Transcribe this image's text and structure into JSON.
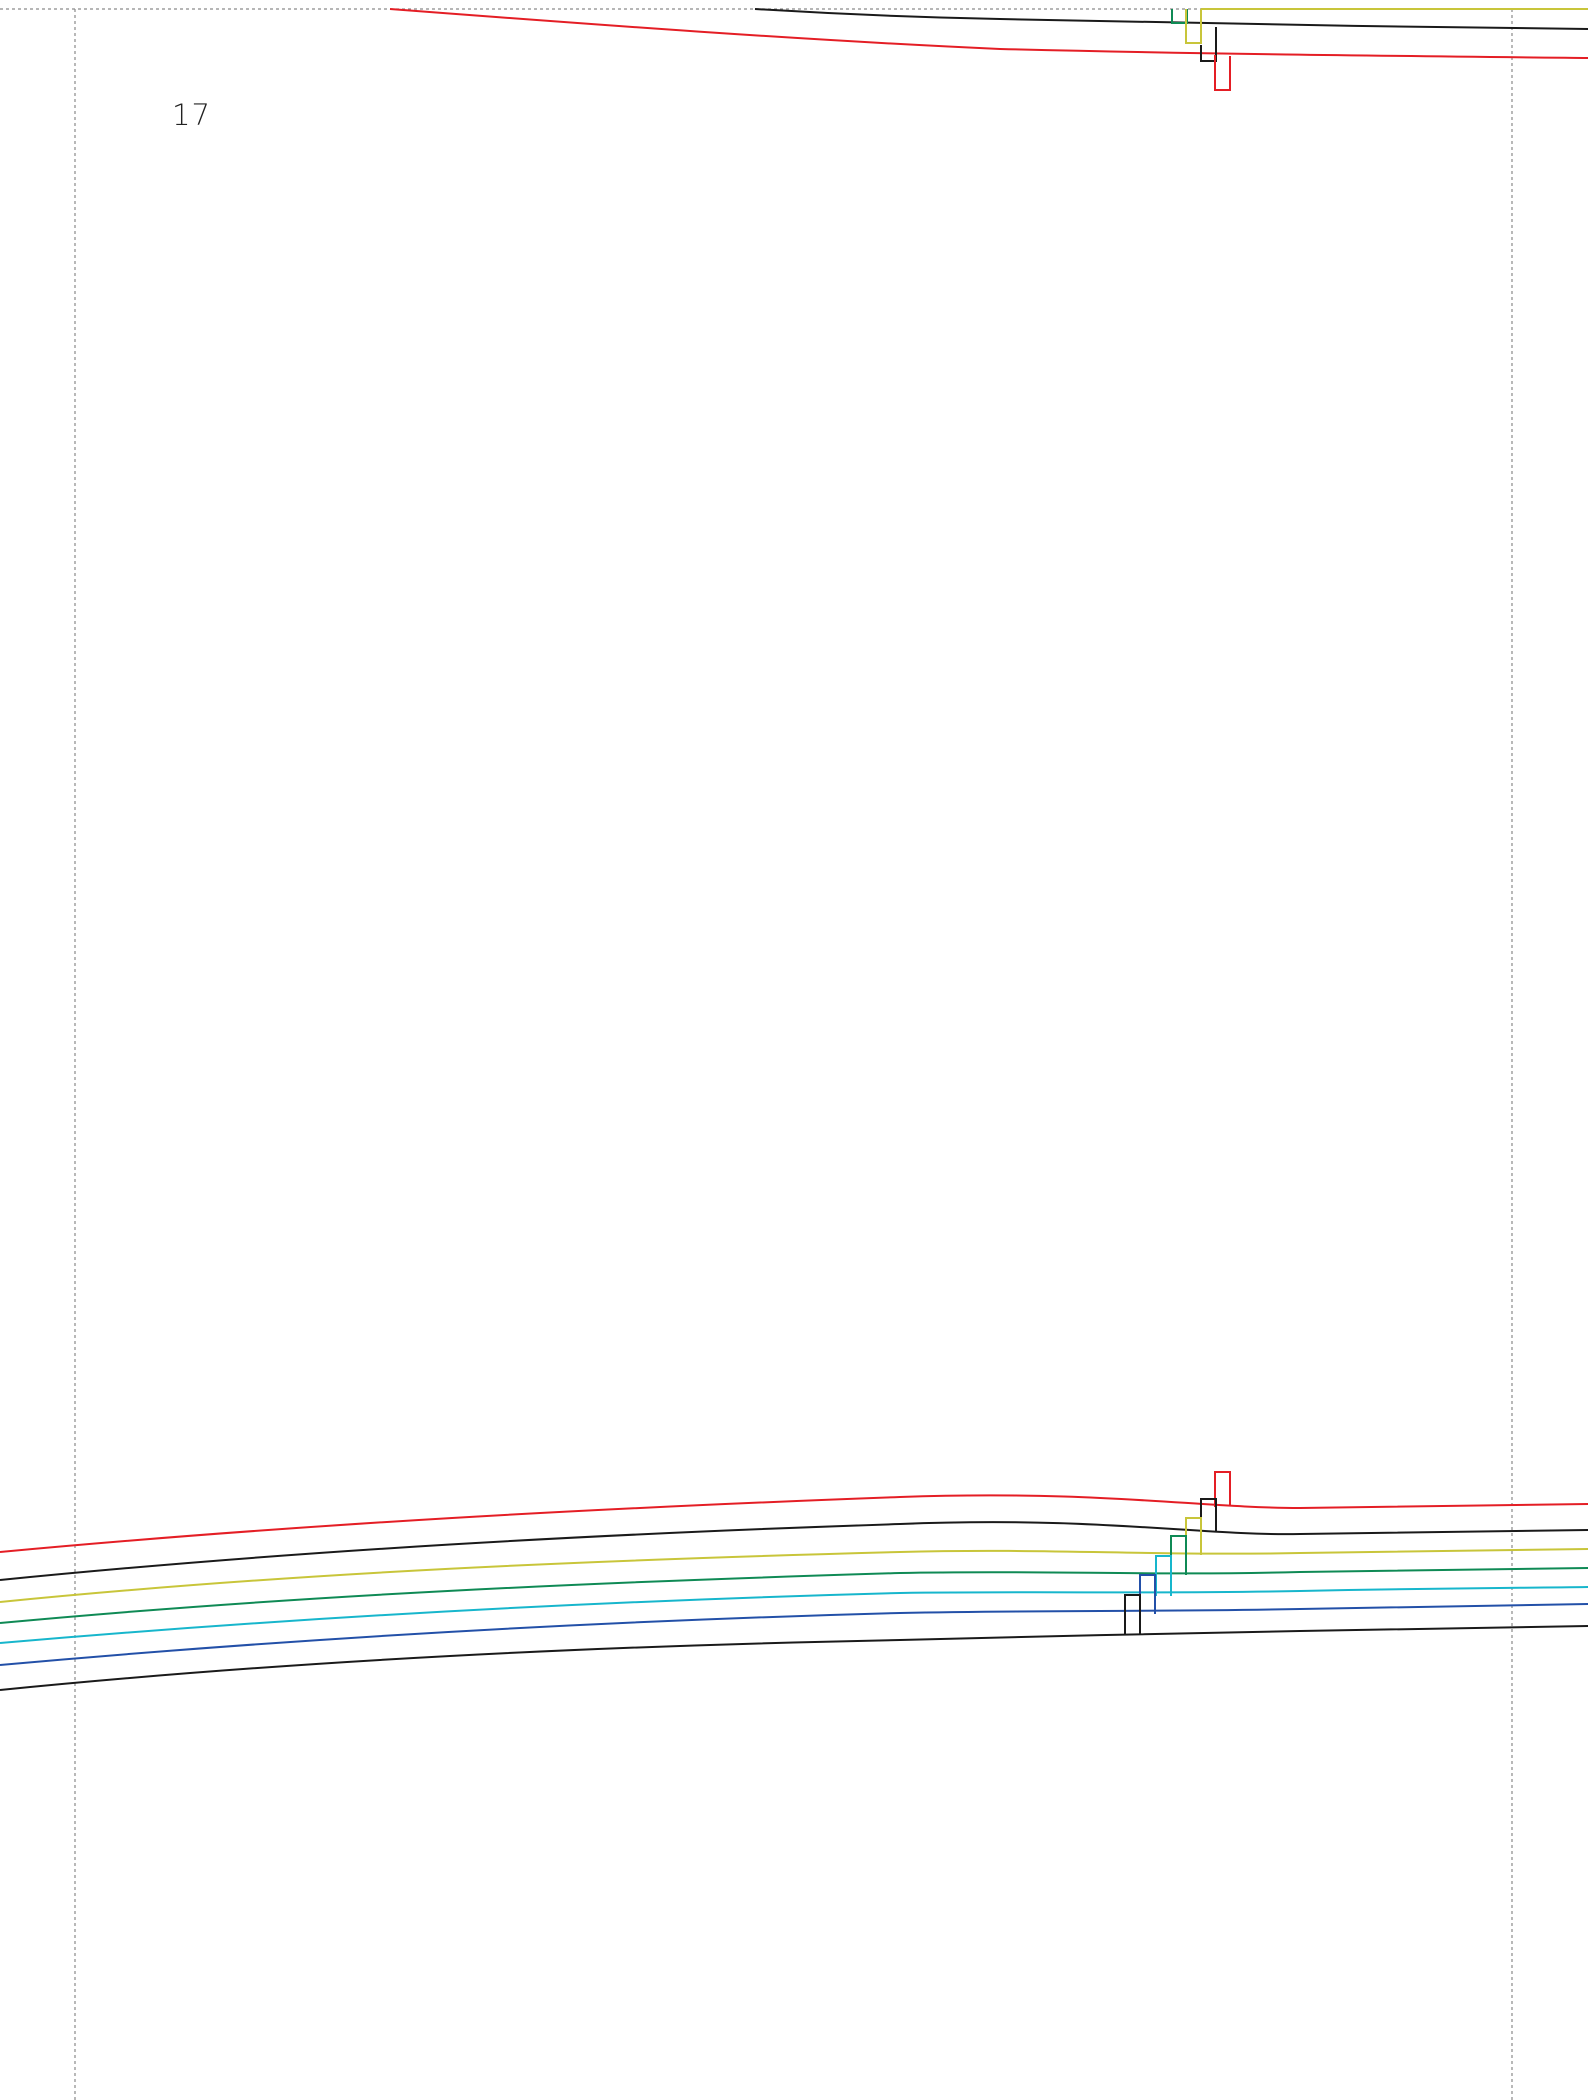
{
  "page": {
    "number": "17"
  },
  "colors": {
    "guide": "#8a8a8a",
    "black": "#1a1a1a",
    "red": "#e41e25",
    "yellow": "#c8c53a",
    "green": "#0f8a55",
    "cyan": "#17b6cc",
    "blue": "#2350a8"
  },
  "pattern": {
    "size_lines": [
      {
        "name": "red",
        "color_key": "red"
      },
      {
        "name": "black-upper",
        "color_key": "black"
      },
      {
        "name": "yellow",
        "color_key": "yellow"
      },
      {
        "name": "green",
        "color_key": "green"
      },
      {
        "name": "cyan",
        "color_key": "cyan"
      },
      {
        "name": "blue",
        "color_key": "blue"
      },
      {
        "name": "black-lower",
        "color_key": "black"
      }
    ]
  }
}
